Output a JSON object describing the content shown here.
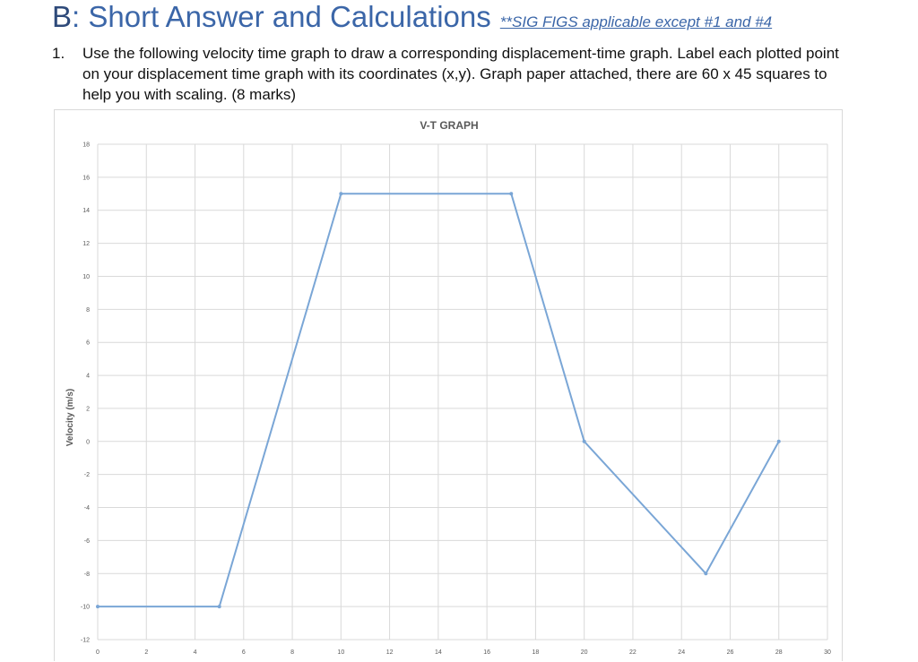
{
  "section": {
    "letter": "B",
    "title": ": Short Answer and Calculations",
    "note": "**SIG FIGS applicable except #1 and #4"
  },
  "question": {
    "number": "1.",
    "text": "Use the following velocity time graph to draw a corresponding displacement-time graph.  Label each plotted point on your displacement time graph with its coordinates (x,y). Graph paper attached, there are 60 x 45 squares to help you with scaling. (8 marks)"
  },
  "chart_data": {
    "type": "line",
    "title": "V-T GRAPH",
    "xlabel": "",
    "ylabel": "Velocity (m/s)",
    "xlim": [
      0,
      30
    ],
    "ylim": [
      -12,
      18
    ],
    "x_ticks": [
      0,
      2,
      4,
      6,
      8,
      10,
      12,
      14,
      16,
      18,
      20,
      22,
      24,
      26,
      28,
      30
    ],
    "y_ticks": [
      18,
      16,
      14,
      12,
      10,
      8,
      6,
      4,
      2,
      0,
      -2,
      -4,
      -6,
      -8,
      -10,
      -12
    ],
    "grid": true,
    "line_color": "#7aa6d6",
    "series": [
      {
        "x": [
          0,
          5,
          10,
          17,
          20,
          25,
          28
        ],
        "values": [
          -10,
          -10,
          15,
          15,
          0,
          -8,
          0
        ]
      }
    ]
  }
}
